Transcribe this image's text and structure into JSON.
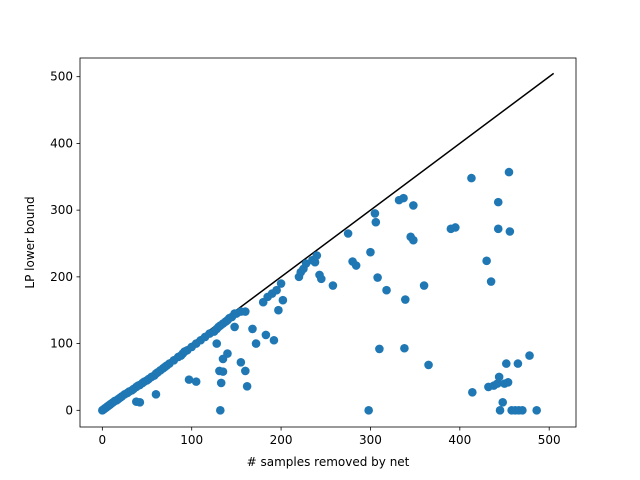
{
  "chart_data": {
    "type": "scatter",
    "title": "",
    "xlabel": "# samples removed by net",
    "ylabel": "LP lower bound",
    "xlim": [
      -25,
      530
    ],
    "ylim": [
      -25,
      528
    ],
    "xticks": [
      0,
      100,
      200,
      300,
      400,
      500
    ],
    "yticks": [
      0,
      100,
      200,
      300,
      400,
      500
    ],
    "grid": false,
    "colors": {
      "points": "#1f77b4",
      "line": "#000000",
      "axes": "#000000"
    },
    "series": [
      {
        "type": "line",
        "x": [
          0,
          505
        ],
        "y": [
          0,
          505
        ]
      },
      {
        "type": "scatter",
        "points": [
          [
            0,
            0
          ],
          [
            1,
            1
          ],
          [
            2,
            2
          ],
          [
            3,
            3
          ],
          [
            4,
            4
          ],
          [
            5,
            5
          ],
          [
            6,
            6
          ],
          [
            7,
            7
          ],
          [
            8,
            8
          ],
          [
            9,
            9
          ],
          [
            10,
            10
          ],
          [
            12,
            12
          ],
          [
            14,
            14
          ],
          [
            16,
            15
          ],
          [
            18,
            17
          ],
          [
            20,
            19
          ],
          [
            22,
            21
          ],
          [
            25,
            24
          ],
          [
            28,
            26
          ],
          [
            30,
            28
          ],
          [
            33,
            30
          ],
          [
            35,
            32
          ],
          [
            38,
            35
          ],
          [
            40,
            37
          ],
          [
            42,
            38
          ],
          [
            45,
            41
          ],
          [
            47,
            43
          ],
          [
            50,
            45
          ],
          [
            52,
            47
          ],
          [
            55,
            50
          ],
          [
            58,
            52
          ],
          [
            60,
            55
          ],
          [
            62,
            57
          ],
          [
            65,
            60
          ],
          [
            68,
            63
          ],
          [
            70,
            65
          ],
          [
            72,
            67
          ],
          [
            75,
            70
          ],
          [
            80,
            75
          ],
          [
            85,
            80
          ],
          [
            88,
            82
          ],
          [
            90,
            85
          ],
          [
            92,
            88
          ],
          [
            95,
            90
          ],
          [
            100,
            95
          ],
          [
            105,
            100
          ],
          [
            110,
            105
          ],
          [
            115,
            110
          ],
          [
            120,
            115
          ],
          [
            125,
            118
          ],
          [
            128,
            122
          ],
          [
            130,
            125
          ],
          [
            132,
            127
          ],
          [
            135,
            130
          ],
          [
            138,
            133
          ],
          [
            140,
            135
          ],
          [
            142,
            138
          ],
          [
            145,
            140
          ],
          [
            148,
            145
          ],
          [
            150,
            145
          ],
          [
            155,
            148
          ],
          [
            160,
            148
          ],
          [
            38,
            13
          ],
          [
            42,
            12
          ],
          [
            60,
            24
          ],
          [
            97,
            46
          ],
          [
            105,
            43
          ],
          [
            128,
            100
          ],
          [
            131,
            59
          ],
          [
            135,
            58
          ],
          [
            133,
            41
          ],
          [
            132,
            0
          ],
          [
            135,
            77
          ],
          [
            140,
            85
          ],
          [
            148,
            125
          ],
          [
            155,
            72
          ],
          [
            160,
            59
          ],
          [
            162,
            36
          ],
          [
            168,
            122
          ],
          [
            172,
            100
          ],
          [
            180,
            162
          ],
          [
            183,
            113
          ],
          [
            185,
            170
          ],
          [
            190,
            175
          ],
          [
            192,
            105
          ],
          [
            195,
            180
          ],
          [
            197,
            150
          ],
          [
            200,
            190
          ],
          [
            202,
            165
          ],
          [
            220,
            200
          ],
          [
            222,
            207
          ],
          [
            225,
            212
          ],
          [
            228,
            220
          ],
          [
            235,
            225
          ],
          [
            238,
            222
          ],
          [
            240,
            232
          ],
          [
            243,
            203
          ],
          [
            245,
            197
          ],
          [
            258,
            187
          ],
          [
            275,
            265
          ],
          [
            280,
            223
          ],
          [
            284,
            217
          ],
          [
            298,
            0
          ],
          [
            300,
            237
          ],
          [
            305,
            295
          ],
          [
            306,
            282
          ],
          [
            308,
            199
          ],
          [
            310,
            92
          ],
          [
            318,
            180
          ],
          [
            332,
            315
          ],
          [
            337,
            318
          ],
          [
            338,
            93
          ],
          [
            339,
            166
          ],
          [
            345,
            260
          ],
          [
            348,
            255
          ],
          [
            348,
            307
          ],
          [
            360,
            187
          ],
          [
            365,
            68
          ],
          [
            390,
            272
          ],
          [
            395,
            274
          ],
          [
            413,
            348
          ],
          [
            414,
            27
          ],
          [
            430,
            224
          ],
          [
            432,
            35
          ],
          [
            435,
            193
          ],
          [
            438,
            37
          ],
          [
            442,
            40
          ],
          [
            443,
            272
          ],
          [
            443,
            312
          ],
          [
            444,
            50
          ],
          [
            445,
            0
          ],
          [
            448,
            12
          ],
          [
            450,
            40
          ],
          [
            452,
            70
          ],
          [
            454,
            42
          ],
          [
            455,
            357
          ],
          [
            456,
            268
          ],
          [
            458,
            0
          ],
          [
            462,
            0
          ],
          [
            465,
            70
          ],
          [
            466,
            0
          ],
          [
            470,
            0
          ],
          [
            478,
            82
          ],
          [
            486,
            0
          ]
        ]
      }
    ]
  }
}
